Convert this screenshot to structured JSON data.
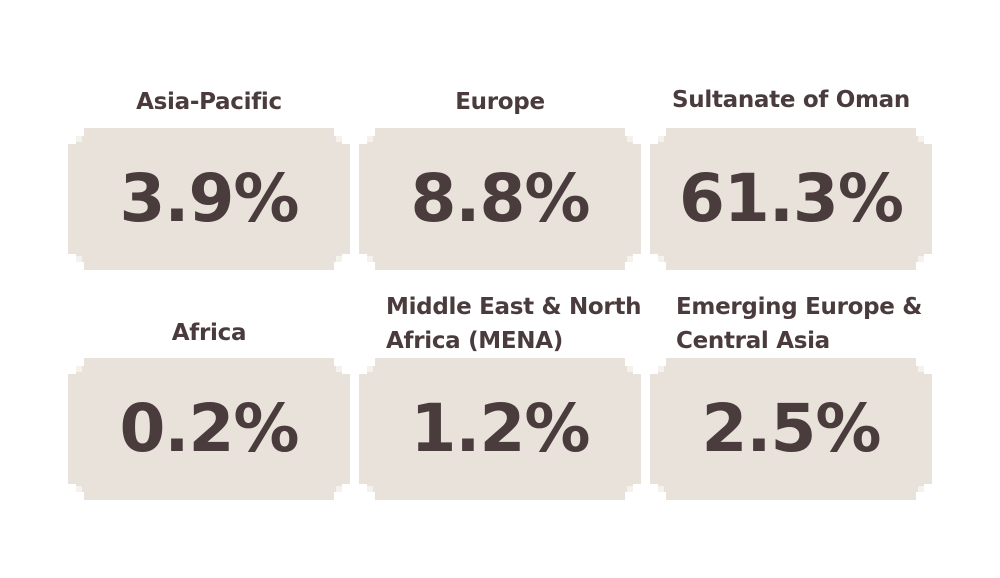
{
  "regions": [
    {
      "name": "Asia-Pacific",
      "value": "3.9%"
    },
    {
      "name": "Europe",
      "value": "8.8%"
    },
    {
      "name": "Sultanate of Oman",
      "value": "61.3%"
    },
    {
      "name": "Africa",
      "value": "0.2%"
    },
    {
      "name_line1": "Middle East & North",
      "name_line2": "Africa (MENA)",
      "value": "1.2%"
    },
    {
      "name_line1": "Emerging Europe &",
      "name_line2": "Central Asia",
      "value": "2.5%"
    }
  ],
  "colors": {
    "badge_fill": "#e8e2da",
    "text": "#4a3b3d"
  }
}
